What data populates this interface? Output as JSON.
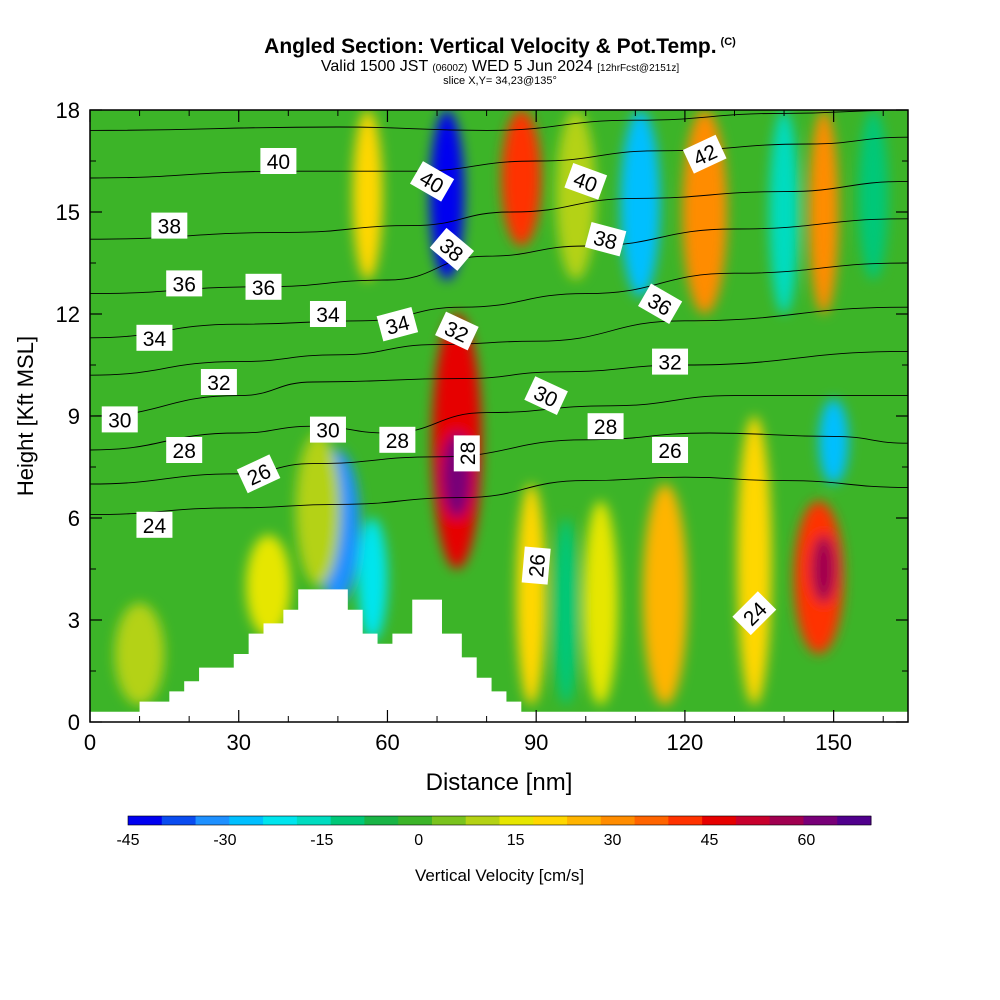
{
  "header": {
    "title": "Angled Section: Vertical Velocity & Pot.Temp.",
    "title_tag": "(C)",
    "valid_prefix": "Valid 1500 JST",
    "valid_utc": "(0600Z)",
    "valid_date": "WED 5 Jun 2024",
    "forecast": "[12hrFcst@2151z]",
    "slice": "slice X,Y= 34,23@135°"
  },
  "chart_data": {
    "type": "heatmap",
    "xlabel": "Distance [nm]",
    "ylabel": "Height [Kft MSL]",
    "xlim": [
      0,
      165
    ],
    "ylim": [
      0,
      18
    ],
    "x_ticks": [
      0,
      30,
      60,
      90,
      120,
      150
    ],
    "y_ticks": [
      0,
      3,
      6,
      9,
      12,
      15,
      18
    ],
    "x_minor": [
      10,
      20,
      40,
      50,
      70,
      80,
      100,
      110,
      130,
      140,
      160
    ],
    "y_minor": [
      1.5,
      4.5,
      7.5,
      10.5,
      13.5,
      16.5
    ],
    "terrain": [
      [
        0,
        0.3
      ],
      [
        10,
        0.3
      ],
      [
        10,
        0.6
      ],
      [
        16,
        0.6
      ],
      [
        16,
        0.9
      ],
      [
        19,
        0.9
      ],
      [
        19,
        1.2
      ],
      [
        22,
        1.2
      ],
      [
        22,
        1.6
      ],
      [
        29,
        1.6
      ],
      [
        29,
        2.0
      ],
      [
        32,
        2.0
      ],
      [
        32,
        2.6
      ],
      [
        35,
        2.6
      ],
      [
        35,
        2.9
      ],
      [
        39,
        2.9
      ],
      [
        39,
        3.3
      ],
      [
        42,
        3.3
      ],
      [
        42,
        3.9
      ],
      [
        52,
        3.9
      ],
      [
        52,
        3.3
      ],
      [
        55,
        3.3
      ],
      [
        55,
        2.6
      ],
      [
        58,
        2.6
      ],
      [
        58,
        2.3
      ],
      [
        61,
        2.3
      ],
      [
        61,
        2.6
      ],
      [
        65,
        2.6
      ],
      [
        65,
        3.6
      ],
      [
        71,
        3.6
      ],
      [
        71,
        2.6
      ],
      [
        75,
        2.6
      ],
      [
        75,
        1.9
      ],
      [
        78,
        1.9
      ],
      [
        78,
        1.3
      ],
      [
        81,
        1.3
      ],
      [
        81,
        0.9
      ],
      [
        84,
        0.9
      ],
      [
        84,
        0.6
      ],
      [
        87,
        0.6
      ],
      [
        87,
        0.3
      ],
      [
        165,
        0.3
      ]
    ],
    "colorbar": {
      "label": "Vertical Velocity [cm/s]",
      "range": [
        -45,
        70
      ],
      "tick_values": [
        -45,
        -30,
        -15,
        0,
        15,
        30,
        45,
        60
      ],
      "colors": [
        "#0000f0",
        "#0a4cf0",
        "#1e90ff",
        "#00bfff",
        "#00e5ee",
        "#00dcc0",
        "#00c878",
        "#19b446",
        "#3cb428",
        "#7ac31e",
        "#b4d214",
        "#e6e600",
        "#ffd700",
        "#ffb400",
        "#ff8c00",
        "#ff6400",
        "#ff3200",
        "#e60000",
        "#c8002d",
        "#a00050",
        "#780078",
        "#50008c"
      ]
    },
    "plumes": [
      {
        "x": 74,
        "y0": 4.5,
        "y1": 12.0,
        "w": 10,
        "value": 45
      },
      {
        "x": 74,
        "y0": 6.0,
        "y1": 8.5,
        "w": 6,
        "value": 60
      },
      {
        "x": 50,
        "y0": 3.5,
        "y1": 8.0,
        "w": 9,
        "value": -30
      },
      {
        "x": 57,
        "y0": 2.4,
        "y1": 6.0,
        "w": 6,
        "value": -20
      },
      {
        "x": 147,
        "y0": 2.0,
        "y1": 6.5,
        "w": 10,
        "value": 40
      },
      {
        "x": 148,
        "y0": 3.5,
        "y1": 5.5,
        "w": 5,
        "value": 55
      },
      {
        "x": 150,
        "y0": 7.0,
        "y1": 9.5,
        "w": 6,
        "value": -25
      },
      {
        "x": 134,
        "y0": 0.5,
        "y1": 9.0,
        "w": 7,
        "value": 20
      },
      {
        "x": 116,
        "y0": 0.5,
        "y1": 7.0,
        "w": 9,
        "value": 25
      },
      {
        "x": 103,
        "y0": 0.5,
        "y1": 6.5,
        "w": 7,
        "value": 15
      },
      {
        "x": 96,
        "y0": 0.5,
        "y1": 6.0,
        "w": 5,
        "value": -10
      },
      {
        "x": 89,
        "y0": 0.5,
        "y1": 7.0,
        "w": 6,
        "value": 18
      },
      {
        "x": 36,
        "y0": 2.5,
        "y1": 5.5,
        "w": 9,
        "value": 15
      },
      {
        "x": 46,
        "y0": 4.0,
        "y1": 8.5,
        "w": 9,
        "value": 10
      },
      {
        "x": 10,
        "y0": 0.5,
        "y1": 3.5,
        "w": 10,
        "value": 8
      },
      {
        "x": 72,
        "y0": 13.0,
        "y1": 18.0,
        "w": 7,
        "value": -40
      },
      {
        "x": 87,
        "y0": 14.0,
        "y1": 18.0,
        "w": 8,
        "value": 40
      },
      {
        "x": 98,
        "y0": 13.0,
        "y1": 18.0,
        "w": 8,
        "value": 12
      },
      {
        "x": 111,
        "y0": 12.5,
        "y1": 18.0,
        "w": 8,
        "value": -28
      },
      {
        "x": 124,
        "y0": 12.0,
        "y1": 18.0,
        "w": 9,
        "value": 32
      },
      {
        "x": 140,
        "y0": 12.0,
        "y1": 18.0,
        "w": 6,
        "value": -15
      },
      {
        "x": 148,
        "y0": 12.0,
        "y1": 18.0,
        "w": 6,
        "value": 30
      },
      {
        "x": 158,
        "y0": 13.0,
        "y1": 18.0,
        "w": 6,
        "value": -10
      },
      {
        "x": 56,
        "y0": 13.0,
        "y1": 18.0,
        "w": 6,
        "value": 20
      }
    ],
    "isentropes": [
      {
        "value": 24,
        "points": [
          [
            0,
            6.1
          ],
          [
            30,
            6.3
          ],
          [
            50,
            6.4
          ],
          [
            75,
            6.6
          ],
          [
            100,
            7.1
          ],
          [
            120,
            7.2
          ],
          [
            140,
            7.1
          ],
          [
            165,
            6.9
          ]
        ]
      },
      {
        "value": 26,
        "points": [
          [
            0,
            7.0
          ],
          [
            30,
            7.3
          ],
          [
            45,
            7.6
          ],
          [
            70,
            7.8
          ],
          [
            100,
            8.3
          ],
          [
            125,
            8.5
          ],
          [
            150,
            8.4
          ],
          [
            165,
            8.2
          ]
        ]
      },
      {
        "value": 28,
        "points": [
          [
            0,
            8.0
          ],
          [
            30,
            8.5
          ],
          [
            45,
            8.7
          ],
          [
            60,
            8.5
          ],
          [
            80,
            9.1
          ],
          [
            105,
            9.3
          ],
          [
            130,
            9.6
          ],
          [
            165,
            9.6
          ]
        ]
      },
      {
        "value": 30,
        "points": [
          [
            0,
            9.0
          ],
          [
            30,
            9.6
          ],
          [
            45,
            10.0
          ],
          [
            75,
            10.1
          ],
          [
            95,
            10.3
          ],
          [
            120,
            10.5
          ],
          [
            165,
            10.9
          ]
        ]
      },
      {
        "value": 32,
        "points": [
          [
            0,
            10.2
          ],
          [
            30,
            10.6
          ],
          [
            50,
            10.8
          ],
          [
            70,
            11.1
          ],
          [
            90,
            11.2
          ],
          [
            120,
            11.8
          ],
          [
            165,
            12.2
          ]
        ]
      },
      {
        "value": 34,
        "points": [
          [
            0,
            11.3
          ],
          [
            30,
            11.7
          ],
          [
            55,
            11.8
          ],
          [
            75,
            12.2
          ],
          [
            100,
            12.6
          ],
          [
            130,
            13.2
          ],
          [
            165,
            13.5
          ]
        ]
      },
      {
        "value": 36,
        "points": [
          [
            0,
            12.6
          ],
          [
            35,
            12.8
          ],
          [
            60,
            13.0
          ],
          [
            80,
            13.7
          ],
          [
            100,
            14.0
          ],
          [
            130,
            14.5
          ],
          [
            165,
            14.8
          ]
        ]
      },
      {
        "value": 38,
        "points": [
          [
            0,
            14.2
          ],
          [
            40,
            14.4
          ],
          [
            65,
            14.6
          ],
          [
            85,
            15.0
          ],
          [
            110,
            15.4
          ],
          [
            140,
            15.6
          ],
          [
            165,
            15.9
          ]
        ]
      },
      {
        "value": 40,
        "points": [
          [
            0,
            16.0
          ],
          [
            40,
            16.2
          ],
          [
            65,
            16.2
          ],
          [
            90,
            16.5
          ],
          [
            115,
            16.8
          ],
          [
            145,
            17.0
          ],
          [
            165,
            17.2
          ]
        ]
      },
      {
        "value": 42,
        "points": [
          [
            0,
            17.4
          ],
          [
            50,
            17.5
          ],
          [
            80,
            17.4
          ],
          [
            110,
            17.7
          ],
          [
            140,
            17.9
          ],
          [
            165,
            18.0
          ]
        ]
      }
    ],
    "contour_labels": [
      {
        "text": "40",
        "x": 38,
        "y": 16.5,
        "angle": 0
      },
      {
        "text": "40",
        "x": 69,
        "y": 15.9,
        "angle": 30
      },
      {
        "text": "40",
        "x": 100,
        "y": 15.9,
        "angle": 20
      },
      {
        "text": "42",
        "x": 124,
        "y": 16.7,
        "angle": -25
      },
      {
        "text": "38",
        "x": 16,
        "y": 14.6,
        "angle": 0
      },
      {
        "text": "38",
        "x": 73,
        "y": 13.9,
        "angle": 40
      },
      {
        "text": "38",
        "x": 104,
        "y": 14.2,
        "angle": 15
      },
      {
        "text": "36",
        "x": 19,
        "y": 12.9,
        "angle": 0
      },
      {
        "text": "36",
        "x": 35,
        "y": 12.8,
        "angle": 0
      },
      {
        "text": "36",
        "x": 115,
        "y": 12.3,
        "angle": 30
      },
      {
        "text": "34",
        "x": 13,
        "y": 11.3,
        "angle": 0
      },
      {
        "text": "34",
        "x": 48,
        "y": 12.0,
        "angle": 0
      },
      {
        "text": "34",
        "x": 62,
        "y": 11.7,
        "angle": -15
      },
      {
        "text": "32",
        "x": 74,
        "y": 11.5,
        "angle": 25
      },
      {
        "text": "32",
        "x": 26,
        "y": 10.0,
        "angle": 0
      },
      {
        "text": "32",
        "x": 117,
        "y": 10.6,
        "angle": 0
      },
      {
        "text": "30",
        "x": 6,
        "y": 8.9,
        "angle": 0
      },
      {
        "text": "30",
        "x": 48,
        "y": 8.6,
        "angle": 0
      },
      {
        "text": "30",
        "x": 92,
        "y": 9.6,
        "angle": 25
      },
      {
        "text": "28",
        "x": 19,
        "y": 8.0,
        "angle": 0
      },
      {
        "text": "28",
        "x": 62,
        "y": 8.3,
        "angle": 0
      },
      {
        "text": "28",
        "x": 76,
        "y": 7.9,
        "angle": -90
      },
      {
        "text": "28",
        "x": 104,
        "y": 8.7,
        "angle": 0
      },
      {
        "text": "26",
        "x": 34,
        "y": 7.3,
        "angle": -25
      },
      {
        "text": "26",
        "x": 117,
        "y": 8.0,
        "angle": 0
      },
      {
        "text": "26",
        "x": 90,
        "y": 4.6,
        "angle": -85
      },
      {
        "text": "24",
        "x": 13,
        "y": 5.8,
        "angle": 0
      },
      {
        "text": "24",
        "x": 134,
        "y": 3.2,
        "angle": -45
      }
    ]
  }
}
